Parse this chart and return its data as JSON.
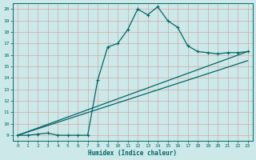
{
  "xlabel": "Humidex (Indice chaleur)",
  "ylabel": "",
  "bg_color": "#cce8e8",
  "grid_color": "#aacccc",
  "line_color": "#006666",
  "xlim": [
    -0.5,
    23.5
  ],
  "ylim": [
    8.5,
    20.5
  ],
  "xticks": [
    0,
    1,
    2,
    3,
    4,
    5,
    6,
    7,
    8,
    9,
    10,
    11,
    12,
    13,
    14,
    15,
    16,
    17,
    18,
    19,
    20,
    21,
    22,
    23
  ],
  "yticks": [
    9,
    10,
    11,
    12,
    13,
    14,
    15,
    16,
    17,
    18,
    19,
    20
  ],
  "curve_x": [
    0,
    1,
    2,
    3,
    4,
    5,
    6,
    7,
    8,
    9,
    10,
    11,
    12,
    13,
    14,
    15,
    16,
    17,
    18,
    19,
    20,
    21,
    22,
    23
  ],
  "curve_y": [
    9,
    9,
    9.1,
    9.2,
    9,
    9,
    9,
    9,
    13.8,
    16.7,
    17.0,
    18.2,
    20.0,
    19.5,
    20.2,
    19.0,
    18.4,
    16.8,
    16.3,
    16.2,
    16.1,
    16.2,
    16.2,
    16.3
  ],
  "line1_x": [
    0,
    23
  ],
  "line1_y": [
    9,
    16.3
  ],
  "line2_x": [
    0,
    23
  ],
  "line2_y": [
    9,
    15.5
  ]
}
